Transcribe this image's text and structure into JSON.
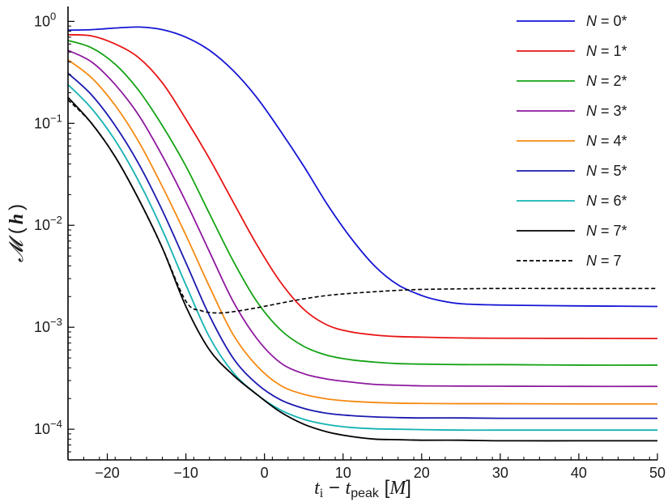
{
  "chart_data": {
    "type": "line",
    "title": "",
    "xlabel": "t_i − t_peak [M]",
    "ylabel": "𝓜 (h)",
    "xlabel_parts": {
      "t": "t",
      "i": "i",
      "minus": " − ",
      "t2": "t",
      "peak": "peak",
      "unit_open": " [",
      "unit": "M",
      "unit_close": "]"
    },
    "ylabel_parts": {
      "m": "𝓜",
      "open": "(",
      "h": "h",
      "close": ")"
    },
    "xlim": [
      -25,
      50
    ],
    "ylim": [
      5e-05,
      1.4
    ],
    "yscale": "log",
    "x_ticks": [
      -20,
      -10,
      0,
      10,
      20,
      30,
      40,
      50
    ],
    "x_tick_labels": [
      "−20",
      "−10",
      "0",
      "10",
      "20",
      "30",
      "40",
      "50"
    ],
    "y_ticks": [
      {
        "value": 1,
        "base": "10",
        "exp": "0"
      },
      {
        "value": 0.1,
        "base": "10",
        "exp": "−1"
      },
      {
        "value": 0.01,
        "base": "10",
        "exp": "−2"
      },
      {
        "value": 0.001,
        "base": "10",
        "exp": "−3"
      },
      {
        "value": 0.0001,
        "base": "10",
        "exp": "−4"
      }
    ],
    "grid": false,
    "legend_position": "top-right",
    "series": [
      {
        "name": "N = 0*",
        "name_var": "N",
        "name_rest": " = 0*",
        "color": "#1515d4",
        "dash": "solid",
        "x": [
          -25,
          -22,
          -19,
          -16,
          -13,
          -10,
          -7,
          -4,
          -1,
          2,
          5,
          8,
          11,
          14,
          17,
          20,
          22,
          25,
          30,
          40,
          50
        ],
        "y": [
          0.82,
          0.83,
          0.86,
          0.88,
          0.83,
          0.7,
          0.52,
          0.33,
          0.18,
          0.085,
          0.038,
          0.016,
          0.0075,
          0.004,
          0.0026,
          0.00205,
          0.00185,
          0.0017,
          0.00165,
          0.00162,
          0.0016
        ]
      },
      {
        "name": "N = 1*",
        "name_var": "N",
        "name_rest": " = 1*",
        "color": "#e81515",
        "dash": "solid",
        "x": [
          -25,
          -22,
          -19,
          -16,
          -13,
          -10,
          -7,
          -4,
          -1,
          2,
          5,
          8,
          11,
          14,
          17,
          20,
          25,
          30,
          40,
          50
        ],
        "y": [
          0.74,
          0.72,
          0.6,
          0.44,
          0.25,
          0.11,
          0.045,
          0.017,
          0.0065,
          0.0028,
          0.0015,
          0.00105,
          0.0009,
          0.00084,
          0.00081,
          0.0008,
          0.000785,
          0.00078,
          0.000778,
          0.000775
        ]
      },
      {
        "name": "N = 2*",
        "name_var": "N",
        "name_rest": " = 2*",
        "color": "#15a315",
        "dash": "solid",
        "x": [
          -25,
          -22,
          -19,
          -16,
          -13,
          -10,
          -7,
          -4,
          -1,
          2,
          5,
          8,
          11,
          14,
          17,
          20,
          25,
          30,
          40,
          50
        ],
        "y": [
          0.65,
          0.55,
          0.38,
          0.21,
          0.095,
          0.038,
          0.013,
          0.0045,
          0.0018,
          0.00095,
          0.00065,
          0.00053,
          0.00048,
          0.000455,
          0.00044,
          0.000435,
          0.00043,
          0.00043,
          0.000425,
          0.000425
        ]
      },
      {
        "name": "N = 3*",
        "name_var": "N",
        "name_rest": " = 3*",
        "color": "#8e1a9e",
        "dash": "solid",
        "x": [
          -25,
          -22,
          -19,
          -16,
          -13,
          -10,
          -7,
          -4,
          -1,
          2,
          5,
          8,
          11,
          14,
          17,
          20,
          25,
          30,
          40,
          50
        ],
        "y": [
          0.52,
          0.4,
          0.24,
          0.12,
          0.048,
          0.017,
          0.0055,
          0.0018,
          0.00078,
          0.00045,
          0.00035,
          0.00031,
          0.00029,
          0.000275,
          0.00027,
          0.000266,
          0.000265,
          0.000264,
          0.000263,
          0.000263
        ]
      },
      {
        "name": "N = 4*",
        "name_var": "N",
        "name_rest": " = 4*",
        "color": "#f58a12",
        "dash": "solid",
        "x": [
          -25,
          -22,
          -19,
          -16,
          -13,
          -10,
          -7,
          -4,
          -1,
          2,
          5,
          8,
          11,
          14,
          17,
          20,
          25,
          30,
          40,
          50
        ],
        "y": [
          0.42,
          0.28,
          0.15,
          0.066,
          0.024,
          0.008,
          0.0025,
          0.00085,
          0.00042,
          0.00027,
          0.00022,
          0.000198,
          0.000188,
          0.000183,
          0.00018,
          0.000179,
          0.000178,
          0.000178,
          0.000177,
          0.000177
        ]
      },
      {
        "name": "N = 5*",
        "name_var": "N",
        "name_rest": " = 5*",
        "color": "#1a1ab0",
        "dash": "solid",
        "x": [
          -25,
          -22,
          -19,
          -16,
          -13,
          -10,
          -7,
          -4,
          -1,
          2,
          5,
          8,
          11,
          14,
          17,
          20,
          25,
          30,
          40,
          50
        ],
        "y": [
          0.31,
          0.19,
          0.095,
          0.04,
          0.014,
          0.0043,
          0.0013,
          0.0005,
          0.00028,
          0.000195,
          0.00016,
          0.000143,
          0.000136,
          0.000132,
          0.00013,
          0.000129,
          0.000129,
          0.000128,
          0.000128,
          0.000128
        ]
      },
      {
        "name": "N = 6*",
        "name_var": "N",
        "name_rest": " = 6*",
        "color": "#14b2b2",
        "dash": "solid",
        "x": [
          -25,
          -22,
          -19,
          -16,
          -13,
          -10,
          -7,
          -4,
          -1,
          2,
          5,
          8,
          11,
          14,
          17,
          20,
          25,
          30,
          40,
          50
        ],
        "y": [
          0.24,
          0.14,
          0.068,
          0.027,
          0.009,
          0.0026,
          0.0008,
          0.00036,
          0.00022,
          0.000155,
          0.000125,
          0.000111,
          0.000104,
          0.000101,
          0.0001,
          9.9e-05,
          9.8e-05,
          9.8e-05,
          9.8e-05,
          9.8e-05
        ]
      },
      {
        "name": "N = 7*",
        "name_var": "N",
        "name_rest": " = 7*",
        "color": "#000000",
        "dash": "solid",
        "x": [
          -25,
          -22,
          -19,
          -16,
          -13,
          -10,
          -7,
          -4,
          -1,
          2,
          5,
          8,
          11,
          14,
          17,
          20,
          25,
          30,
          40,
          50
        ],
        "y": [
          0.18,
          0.1,
          0.047,
          0.018,
          0.006,
          0.0016,
          0.0006,
          0.00034,
          0.00022,
          0.000148,
          0.000112,
          9.4e-05,
          8.5e-05,
          8e-05,
          7.9e-05,
          7.8e-05,
          7.8e-05,
          7.7e-05,
          7.7e-05,
          7.7e-05
        ]
      },
      {
        "name": "N = 7",
        "name_var": "N",
        "name_rest": " = 7",
        "color": "#000000",
        "dash": "dashed",
        "x": [
          -25,
          -22,
          -19,
          -16,
          -13,
          -10,
          -8,
          -6,
          -4,
          -1,
          2,
          5,
          8,
          11,
          14,
          17,
          20,
          25,
          30,
          40,
          50
        ],
        "y": [
          0.17,
          0.1,
          0.047,
          0.018,
          0.006,
          0.0018,
          0.00145,
          0.00138,
          0.00142,
          0.00155,
          0.00172,
          0.0019,
          0.00205,
          0.00215,
          0.00223,
          0.0023,
          0.00235,
          0.00238,
          0.0024,
          0.0024,
          0.0024
        ]
      }
    ]
  }
}
